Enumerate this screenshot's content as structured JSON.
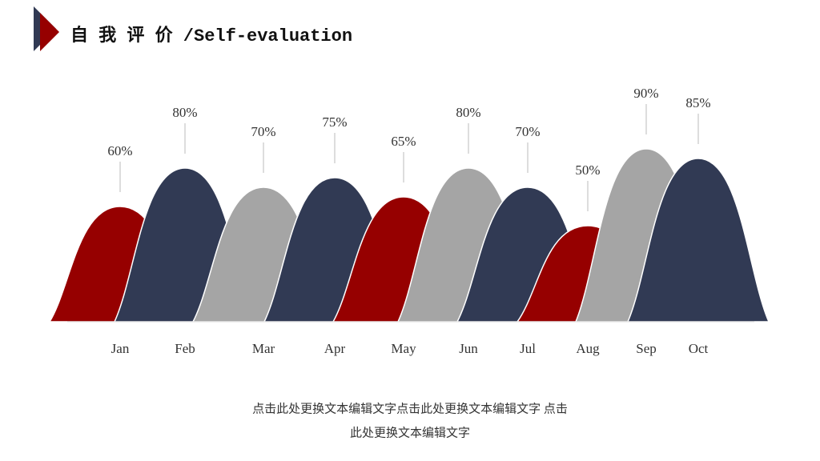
{
  "header": {
    "title": "自 我 评 价 /Self-evaluation"
  },
  "chart_data": {
    "type": "bell",
    "categories": [
      "Jan",
      "Feb",
      "Mar",
      "Apr",
      "May",
      "Jun",
      "Jul",
      "Aug",
      "Sep",
      "Oct"
    ],
    "values": [
      60,
      80,
      70,
      75,
      65,
      80,
      70,
      50,
      90,
      85
    ],
    "value_labels": [
      "60%",
      "80%",
      "70%",
      "75%",
      "65%",
      "80%",
      "70%",
      "50%",
      "90%",
      "85%"
    ],
    "colors": [
      "#960000",
      "#313a54",
      "#a5a5a5",
      "#313a54",
      "#960000",
      "#a5a5a5",
      "#313a54",
      "#960000",
      "#a5a5a5",
      "#313a54"
    ]
  },
  "footer": {
    "lines": [
      "点击此处更换文本编辑文字点击此处更换文本编辑文字 点击",
      "此处更换文本编辑文字"
    ]
  }
}
